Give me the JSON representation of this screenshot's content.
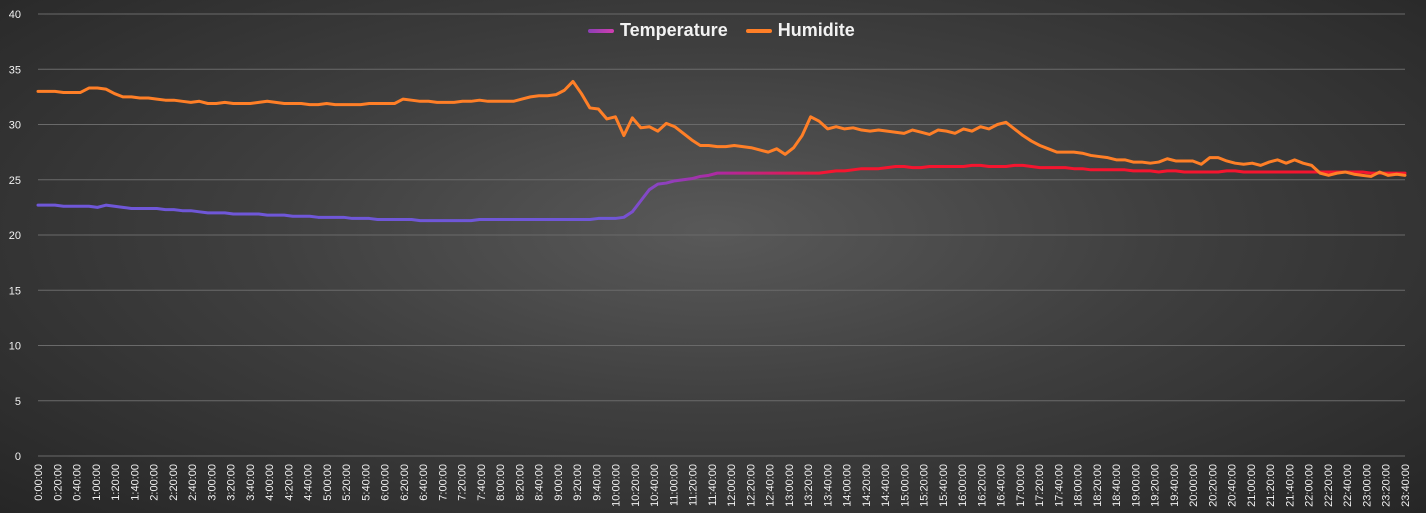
{
  "chart_data": {
    "type": "line",
    "title": "",
    "xlabel": "",
    "ylabel": "",
    "ylim": [
      0,
      40
    ],
    "y_ticks": [
      0,
      5,
      10,
      15,
      20,
      25,
      30,
      35,
      40
    ],
    "grid": true,
    "legend_position": "top-center",
    "colors": {
      "temperature_start": "#6f57d8",
      "temperature_mid": "#b0289f",
      "temperature_end": "#f5152f",
      "humidite": "#ff7f27",
      "background": "#2b2b2b",
      "grid": "#6a6a6a",
      "text": "#f2f2f2"
    },
    "legend_entries": [
      "Temperature",
      "Humidite"
    ],
    "x_tick_labels": [
      "0:00:00",
      "0:20:00",
      "0:40:00",
      "1:00:00",
      "1:20:00",
      "1:40:00",
      "2:00:00",
      "2:20:00",
      "2:40:00",
      "3:00:00",
      "3:20:00",
      "3:40:00",
      "4:00:00",
      "4:20:00",
      "4:40:00",
      "5:00:00",
      "5:20:00",
      "5:40:00",
      "6:00:00",
      "6:20:00",
      "6:40:00",
      "7:00:00",
      "7:20:00",
      "7:40:00",
      "8:00:00",
      "8:20:00",
      "8:40:00",
      "9:00:00",
      "9:20:00",
      "9:40:00",
      "10:00:00",
      "10:20:00",
      "10:40:00",
      "11:00:00",
      "11:20:00",
      "11:40:00",
      "12:00:00",
      "12:20:00",
      "12:40:00",
      "13:00:00",
      "13:20:00",
      "13:40:00",
      "14:00:00",
      "14:20:00",
      "14:40:00",
      "15:00:00",
      "15:20:00",
      "15:40:00",
      "16:00:00",
      "16:20:00",
      "16:40:00",
      "17:00:00",
      "17:20:00",
      "17:40:00",
      "18:00:00",
      "18:20:00",
      "18:40:00",
      "19:00:00",
      "19:20:00",
      "19:40:00",
      "20:00:00",
      "20:20:00",
      "20:40:00",
      "21:00:00",
      "21:20:00",
      "21:40:00",
      "22:00:00",
      "22:20:00",
      "22:40:00",
      "23:00:00",
      "23:20:00",
      "23:40:00"
    ],
    "series": [
      {
        "name": "Temperature",
        "values": [
          22.7,
          22.7,
          22.7,
          22.6,
          22.6,
          22.6,
          22.6,
          22.5,
          22.7,
          22.6,
          22.5,
          22.4,
          22.4,
          22.4,
          22.4,
          22.3,
          22.3,
          22.2,
          22.2,
          22.1,
          22.0,
          22.0,
          22.0,
          21.9,
          21.9,
          21.9,
          21.9,
          21.8,
          21.8,
          21.8,
          21.7,
          21.7,
          21.7,
          21.6,
          21.6,
          21.6,
          21.6,
          21.5,
          21.5,
          21.5,
          21.4,
          21.4,
          21.4,
          21.4,
          21.4,
          21.3,
          21.3,
          21.3,
          21.3,
          21.3,
          21.3,
          21.3,
          21.4,
          21.4,
          21.4,
          21.4,
          21.4,
          21.4,
          21.4,
          21.4,
          21.4,
          21.4,
          21.4,
          21.4,
          21.4,
          21.4,
          21.5,
          21.5,
          21.5,
          21.6,
          22.1,
          23.1,
          24.1,
          24.6,
          24.7,
          24.9,
          25.0,
          25.1,
          25.3,
          25.4,
          25.6,
          25.6,
          25.6,
          25.6,
          25.6,
          25.6,
          25.6,
          25.6,
          25.6,
          25.6,
          25.6,
          25.6,
          25.6,
          25.7,
          25.8,
          25.8,
          25.9,
          26.0,
          26.0,
          26.0,
          26.1,
          26.2,
          26.2,
          26.1,
          26.1,
          26.2,
          26.2,
          26.2,
          26.2,
          26.2,
          26.3,
          26.3,
          26.2,
          26.2,
          26.2,
          26.3,
          26.3,
          26.2,
          26.1,
          26.1,
          26.1,
          26.1,
          26.0,
          26.0,
          25.9,
          25.9,
          25.9,
          25.9,
          25.9,
          25.8,
          25.8,
          25.8,
          25.7,
          25.8,
          25.8,
          25.7,
          25.7,
          25.7,
          25.7,
          25.7,
          25.8,
          25.8,
          25.7,
          25.7,
          25.7,
          25.7,
          25.7,
          25.7,
          25.7,
          25.7,
          25.7,
          25.7,
          25.7,
          25.7,
          25.7,
          25.7,
          25.7,
          25.6,
          25.6,
          25.6,
          25.6,
          25.6
        ]
      },
      {
        "name": "Humidite",
        "values": [
          33.0,
          33.0,
          33.0,
          32.9,
          32.9,
          32.9,
          33.3,
          33.3,
          33.2,
          32.8,
          32.5,
          32.5,
          32.4,
          32.4,
          32.3,
          32.2,
          32.2,
          32.1,
          32.0,
          32.1,
          31.9,
          31.9,
          32.0,
          31.9,
          31.9,
          31.9,
          32.0,
          32.1,
          32.0,
          31.9,
          31.9,
          31.9,
          31.8,
          31.8,
          31.9,
          31.8,
          31.8,
          31.8,
          31.8,
          31.9,
          31.9,
          31.9,
          31.9,
          32.3,
          32.2,
          32.1,
          32.1,
          32.0,
          32.0,
          32.0,
          32.1,
          32.1,
          32.2,
          32.1,
          32.1,
          32.1,
          32.1,
          32.3,
          32.5,
          32.6,
          32.6,
          32.7,
          33.1,
          33.9,
          32.8,
          31.5,
          31.4,
          30.5,
          30.7,
          29.0,
          30.6,
          29.7,
          29.8,
          29.4,
          30.1,
          29.8,
          29.2,
          28.6,
          28.1,
          28.1,
          28.0,
          28.0,
          28.1,
          28.0,
          27.9,
          27.7,
          27.5,
          27.8,
          27.3,
          27.9,
          29.0,
          30.7,
          30.3,
          29.6,
          29.8,
          29.6,
          29.7,
          29.5,
          29.4,
          29.5,
          29.4,
          29.3,
          29.2,
          29.5,
          29.3,
          29.1,
          29.5,
          29.4,
          29.2,
          29.6,
          29.4,
          29.8,
          29.6,
          30.0,
          30.2,
          29.6,
          29.0,
          28.5,
          28.1,
          27.8,
          27.5,
          27.5,
          27.5,
          27.4,
          27.2,
          27.1,
          27.0,
          26.8,
          26.8,
          26.6,
          26.6,
          26.5,
          26.6,
          26.9,
          26.7,
          26.7,
          26.7,
          26.4,
          27.0,
          27.0,
          26.7,
          26.5,
          26.4,
          26.5,
          26.3,
          26.6,
          26.8,
          26.5,
          26.8,
          26.5,
          26.3,
          25.6,
          25.4,
          25.6,
          25.7,
          25.5,
          25.4,
          25.3,
          25.7,
          25.4,
          25.5,
          25.4
        ]
      }
    ]
  }
}
